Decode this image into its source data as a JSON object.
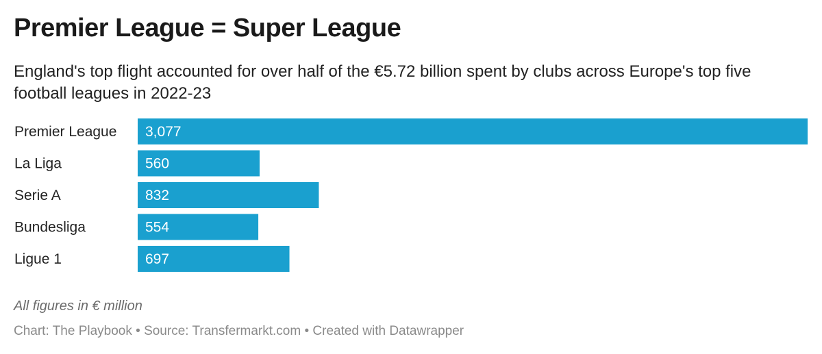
{
  "header": {
    "title": "Premier League = Super League",
    "subtitle": "England's top flight accounted for over half of the €5.72 billion spent by clubs across Europe's top five football leagues in 2022-23"
  },
  "footer": {
    "notes": "All figures in € million",
    "credits": "Chart: The Playbook • Source: Transfermarkt.com • Created with Datawrapper"
  },
  "colors": {
    "bar": "#1aa0cf",
    "label": "#ffffff",
    "text": "#222222"
  },
  "chart_data": {
    "type": "bar",
    "orientation": "horizontal",
    "categories": [
      "Premier League",
      "La Liga",
      "Serie A",
      "Bundesliga",
      "Ligue 1"
    ],
    "values": [
      3077,
      560,
      832,
      554,
      697
    ],
    "value_labels": [
      "3,077",
      "560",
      "832",
      "554",
      "697"
    ],
    "xlim": [
      0,
      3077
    ],
    "grid": false,
    "legend": "none"
  }
}
